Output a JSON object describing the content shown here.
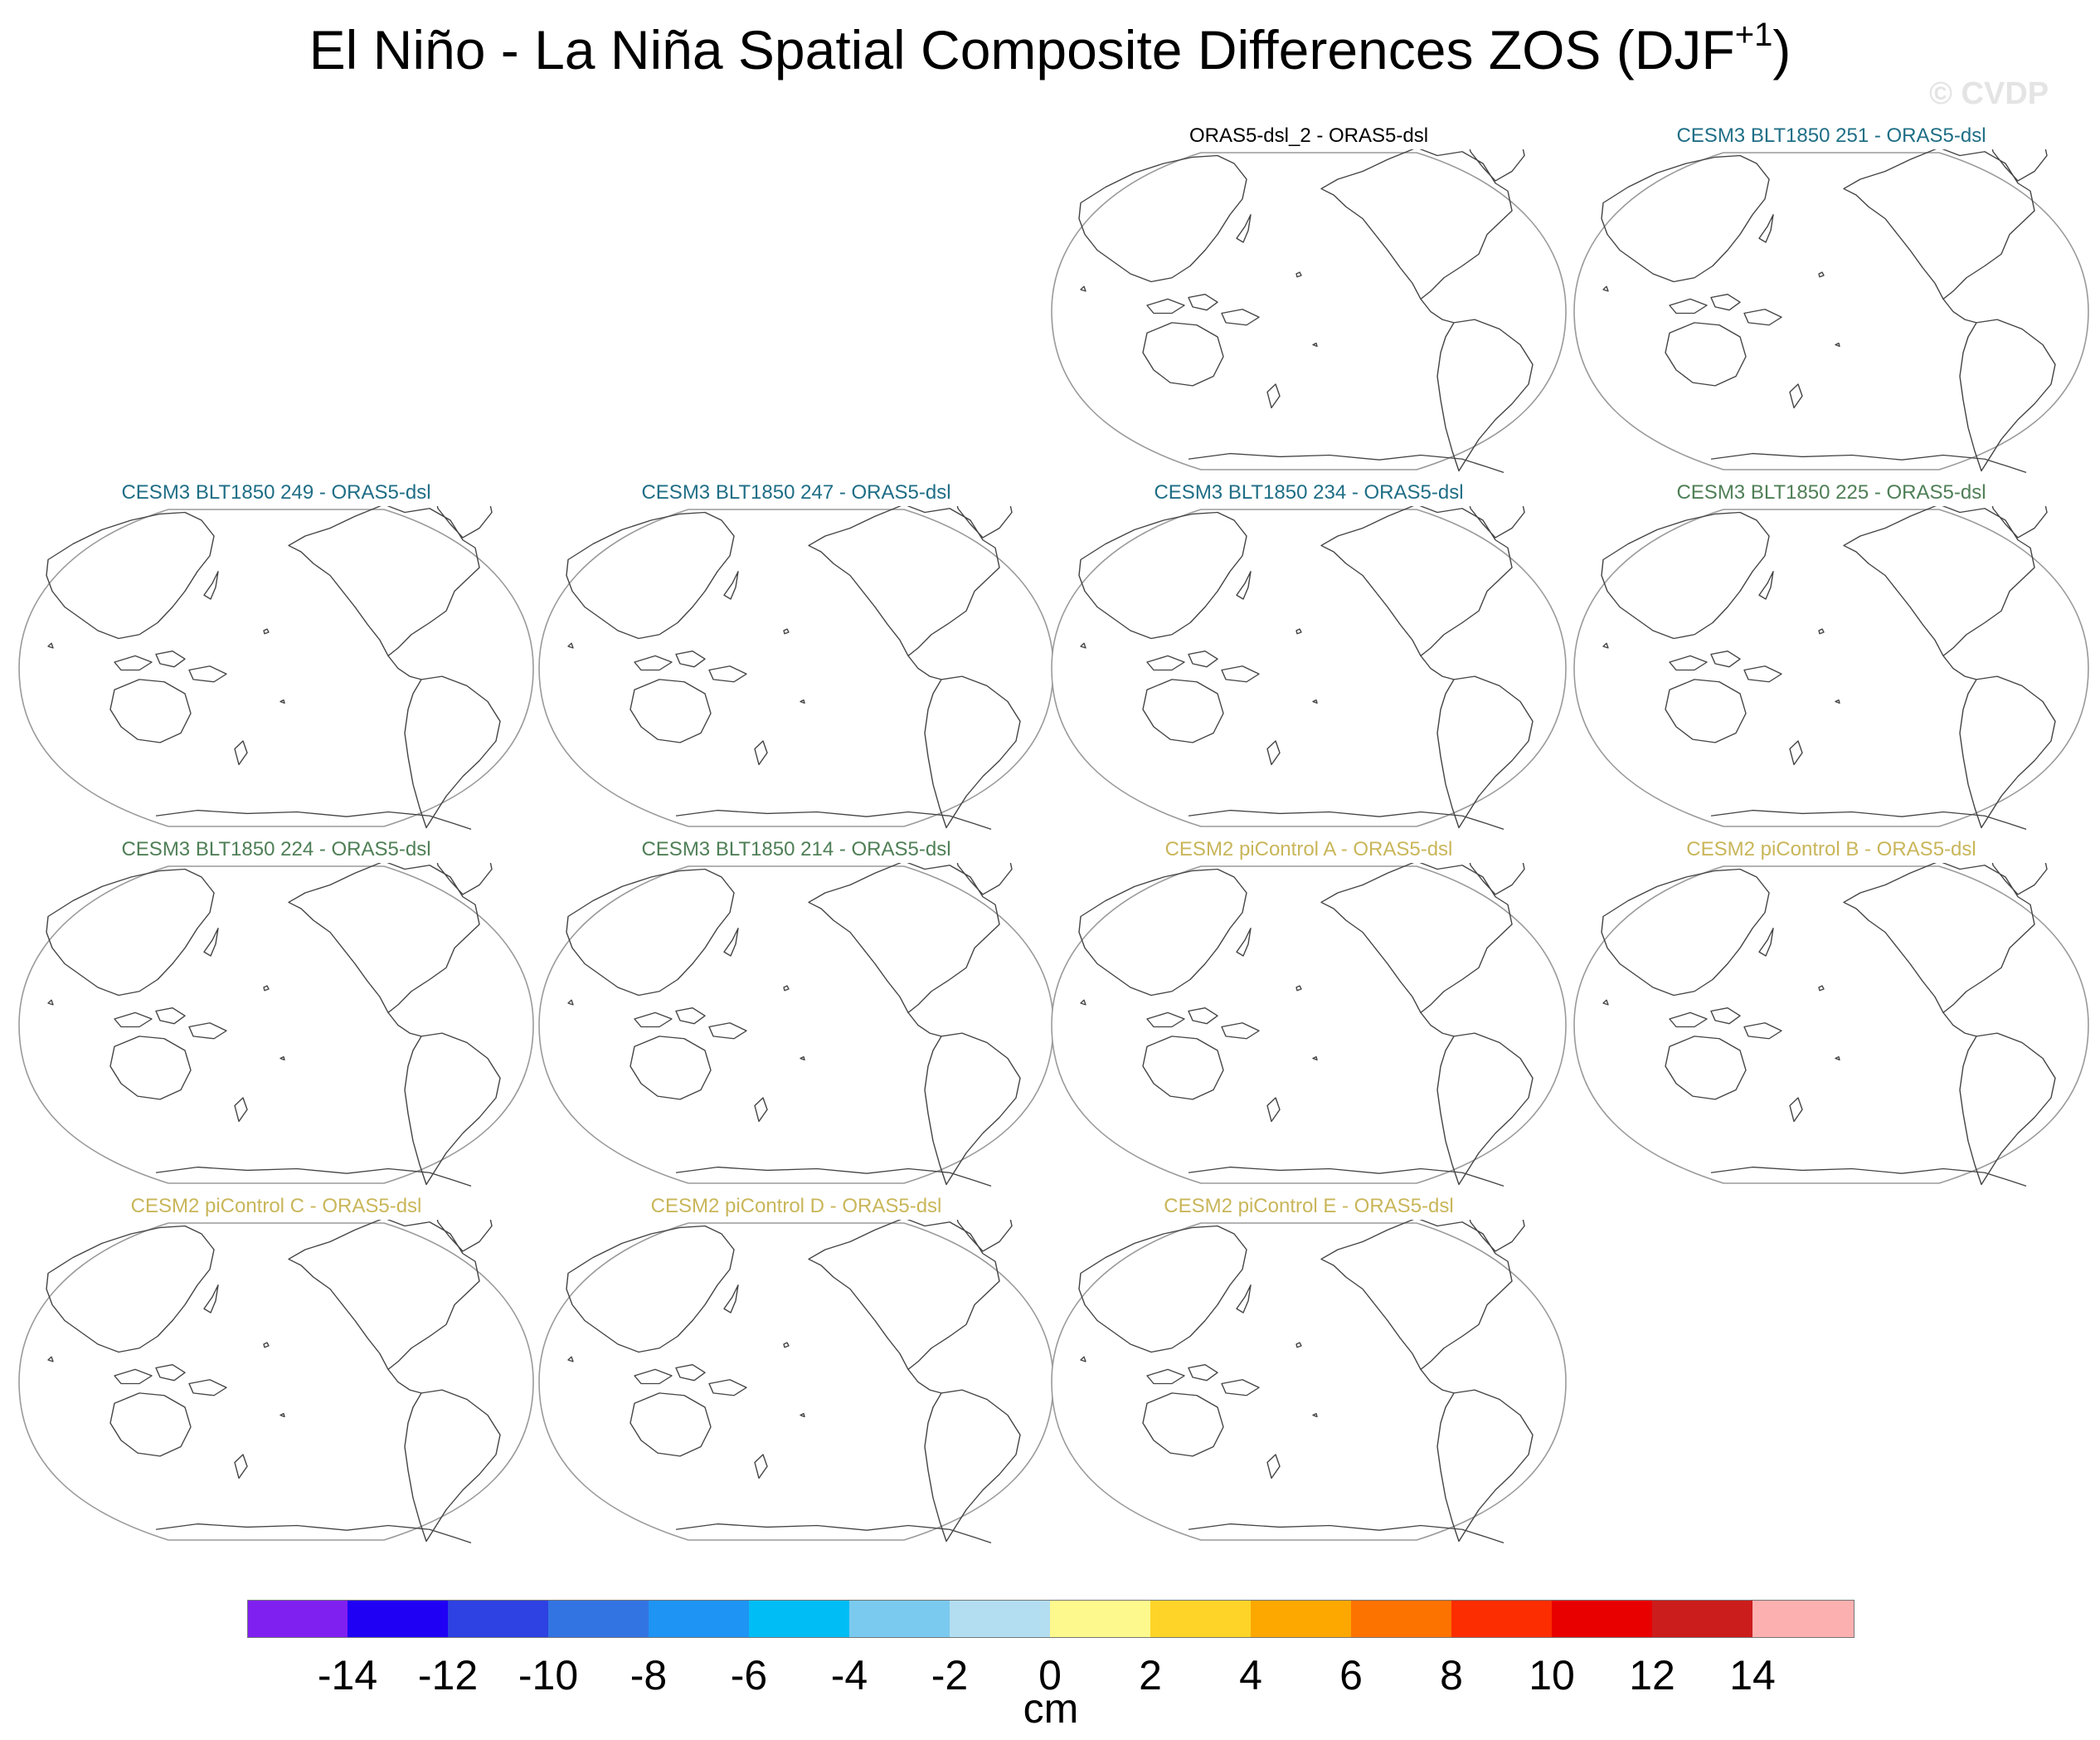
{
  "figure": {
    "title": "El Niño - La Niña Spatial Composite Differences ZOS (DJF",
    "title_superscript": "+1",
    "title_close": ")",
    "watermark": "© CVDP"
  },
  "panels": [
    {
      "title": "ORAS5-dsl_2 - ORAS5-dsl",
      "color": "#000000"
    },
    {
      "title": "CESM3 BLT1850 251 - ORAS5-dsl",
      "color": "#1f6e86"
    },
    {
      "title": "CESM3 BLT1850 249 - ORAS5-dsl",
      "color": "#1f6e86"
    },
    {
      "title": "CESM3 BLT1850 247 - ORAS5-dsl",
      "color": "#1f6e86"
    },
    {
      "title": "CESM3 BLT1850 234 - ORAS5-dsl",
      "color": "#1f6e86"
    },
    {
      "title": "CESM3 BLT1850 225 - ORAS5-dsl",
      "color": "#4f7f56"
    },
    {
      "title": "CESM3 BLT1850 224 - ORAS5-dsl",
      "color": "#4f7f56"
    },
    {
      "title": "CESM3 BLT1850 214 - ORAS5-dsl",
      "color": "#4f7f56"
    },
    {
      "title": "CESM2 piControl A - ORAS5-dsl",
      "color": "#c9b65a"
    },
    {
      "title": "CESM2 piControl B - ORAS5-dsl",
      "color": "#c9b65a"
    },
    {
      "title": "CESM2 piControl C - ORAS5-dsl",
      "color": "#c9b65a"
    },
    {
      "title": "CESM2 piControl D - ORAS5-dsl",
      "color": "#c9b65a"
    },
    {
      "title": "CESM2 piControl E - ORAS5-dsl",
      "color": "#c9b65a"
    }
  ],
  "colorbar": {
    "label": "cm",
    "ticks": [
      "-14",
      "-12",
      "-10",
      "-8",
      "-6",
      "-4",
      "-2",
      "0",
      "2",
      "4",
      "6",
      "8",
      "10",
      "12",
      "14"
    ],
    "colors": [
      "#8020f0",
      "#1f00f5",
      "#2e41e2",
      "#3374e3",
      "#1e94f4",
      "#00bdf5",
      "#7acaef",
      "#b3def1",
      "#fef98d",
      "#fed428",
      "#fda800",
      "#fd7300",
      "#fc2d00",
      "#e80000",
      "#cc1d1d",
      "#fdb0b0"
    ]
  }
}
